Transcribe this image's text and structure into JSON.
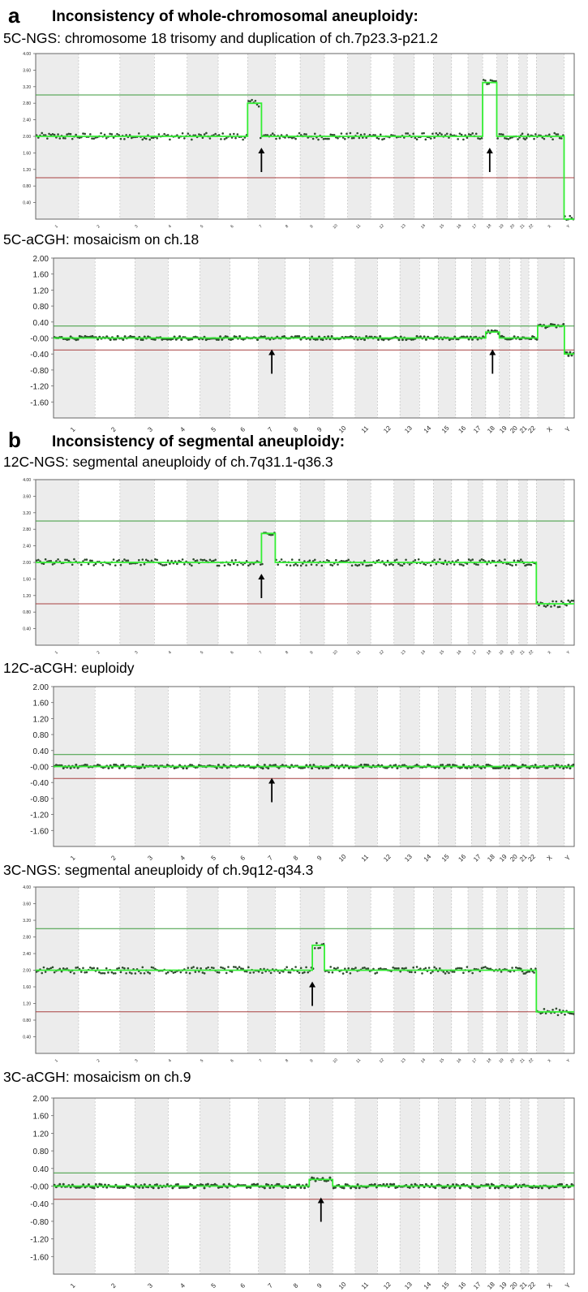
{
  "sections": [
    {
      "letter": "a",
      "title": "Inconsistency of whole-chromosomal aneuploidy:"
    },
    {
      "letter": "b",
      "title": "Inconsistency of segmental aneuploidy:"
    }
  ],
  "colors": {
    "trace": "#33ee33",
    "point": "#2e4a2e",
    "gain_threshold": "#3a9a3a",
    "loss_threshold": "#a84040",
    "shade": "#ececec"
  },
  "chart_data": [
    {
      "type": "scatter",
      "title": "5C-NGS: chromosome 18 trisomy and duplication of ch.7p23.3-p21.2",
      "chromosomes": [
        "1",
        "2",
        "3",
        "4",
        "5",
        "6",
        "7",
        "8",
        "9",
        "10",
        "11",
        "12",
        "13",
        "14",
        "15",
        "16",
        "17",
        "18",
        "19",
        "20",
        "21",
        "22",
        "X",
        "Y"
      ],
      "ylim": [
        0,
        4
      ],
      "yticks": [
        "4.00",
        "3.60",
        "3.20",
        "2.80",
        "2.40",
        "2.00",
        "1.60",
        "1.20",
        "0.80",
        "0.40"
      ],
      "gain_threshold": 3.0,
      "loss_threshold": 1.0,
      "baseline": 2.0,
      "segments": [
        {
          "chromosome": "7p",
          "value": 2.8
        },
        {
          "chromosome": "18",
          "value": 3.3
        },
        {
          "chromosome": "Y",
          "value": 0.0
        }
      ],
      "arrows_at": [
        "7",
        "18"
      ]
    },
    {
      "type": "scatter",
      "title": "5C-aCGH: mosaicism on ch.18",
      "chromosomes": [
        "1",
        "2",
        "3",
        "4",
        "5",
        "6",
        "7",
        "8",
        "9",
        "10",
        "11",
        "12",
        "13",
        "14",
        "15",
        "16",
        "17",
        "18",
        "19",
        "20",
        "21",
        "22",
        "X",
        "Y"
      ],
      "ylim": [
        -2,
        2
      ],
      "yticks": [
        "2.00",
        "1.60",
        "1.20",
        "0.80",
        "0.40",
        "-0.00",
        "-0.40",
        "-0.80",
        "-1.20",
        "-1.60"
      ],
      "gain_threshold": 0.3,
      "loss_threshold": -0.3,
      "baseline": 0.0,
      "segments": [
        {
          "chromosome": "18",
          "value": 0.15
        },
        {
          "chromosome": "X",
          "value": 0.3
        },
        {
          "chromosome": "Y",
          "value": -0.4
        }
      ],
      "arrows_at": [
        "7",
        "18"
      ]
    },
    {
      "type": "scatter",
      "title": "12C-NGS: segmental aneuploidy of ch.7q31.1-q36.3",
      "chromosomes": [
        "1",
        "2",
        "3",
        "4",
        "5",
        "6",
        "7",
        "8",
        "9",
        "10",
        "11",
        "12",
        "13",
        "14",
        "15",
        "16",
        "17",
        "18",
        "19",
        "20",
        "21",
        "22",
        "X",
        "Y"
      ],
      "ylim": [
        0,
        4
      ],
      "yticks": [
        "4.00",
        "3.60",
        "3.20",
        "2.80",
        "2.40",
        "2.00",
        "1.60",
        "1.20",
        "0.80",
        "0.40"
      ],
      "gain_threshold": 3.0,
      "loss_threshold": 1.0,
      "baseline": 2.0,
      "segments": [
        {
          "chromosome": "7q",
          "value": 2.7
        },
        {
          "chromosome": "X",
          "value": 1.0
        },
        {
          "chromosome": "Y",
          "value": 1.0
        }
      ],
      "arrows_at": [
        "7"
      ]
    },
    {
      "type": "scatter",
      "title": "12C-aCGH: euploidy",
      "chromosomes": [
        "1",
        "2",
        "3",
        "4",
        "5",
        "6",
        "7",
        "8",
        "9",
        "10",
        "11",
        "12",
        "13",
        "14",
        "15",
        "16",
        "17",
        "18",
        "19",
        "20",
        "21",
        "22",
        "X",
        "Y"
      ],
      "ylim": [
        -2,
        2
      ],
      "yticks": [
        "2.00",
        "1.60",
        "1.20",
        "0.80",
        "0.40",
        "-0.00",
        "-0.40",
        "-0.80",
        "-1.20",
        "-1.60"
      ],
      "gain_threshold": 0.3,
      "loss_threshold": -0.3,
      "baseline": 0.0,
      "segments": [],
      "arrows_at": [
        "7"
      ]
    },
    {
      "type": "scatter",
      "title": "3C-NGS: segmental aneuploidy of ch.9q12-q34.3",
      "chromosomes": [
        "1",
        "2",
        "3",
        "4",
        "5",
        "6",
        "7",
        "8",
        "9",
        "10",
        "11",
        "12",
        "13",
        "14",
        "15",
        "16",
        "17",
        "18",
        "19",
        "20",
        "21",
        "22",
        "X",
        "Y"
      ],
      "ylim": [
        0,
        4
      ],
      "yticks": [
        "4.00",
        "3.60",
        "3.20",
        "2.80",
        "2.40",
        "2.00",
        "1.60",
        "1.20",
        "0.80",
        "0.40"
      ],
      "gain_threshold": 3.0,
      "loss_threshold": 1.0,
      "baseline": 2.0,
      "segments": [
        {
          "chromosome": "9q",
          "value": 2.6
        },
        {
          "chromosome": "X",
          "value": 1.0
        },
        {
          "chromosome": "Y",
          "value": 1.0
        }
      ],
      "arrows_at": [
        "9"
      ]
    },
    {
      "type": "scatter",
      "title": "3C-aCGH: mosaicism on ch.9",
      "chromosomes": [
        "1",
        "2",
        "3",
        "4",
        "5",
        "6",
        "7",
        "8",
        "9",
        "10",
        "11",
        "12",
        "13",
        "14",
        "15",
        "16",
        "17",
        "18",
        "19",
        "20",
        "21",
        "22",
        "X",
        "Y"
      ],
      "ylim": [
        -2,
        2
      ],
      "yticks": [
        "2.00",
        "1.60",
        "1.20",
        "0.80",
        "0.40",
        "-0.00",
        "-0.40",
        "-0.80",
        "-1.20",
        "-1.60"
      ],
      "gain_threshold": 0.3,
      "loss_threshold": -0.3,
      "baseline": 0.0,
      "segments": [
        {
          "chromosome": "9",
          "value": 0.15
        }
      ],
      "arrows_at": [
        "9"
      ]
    }
  ]
}
